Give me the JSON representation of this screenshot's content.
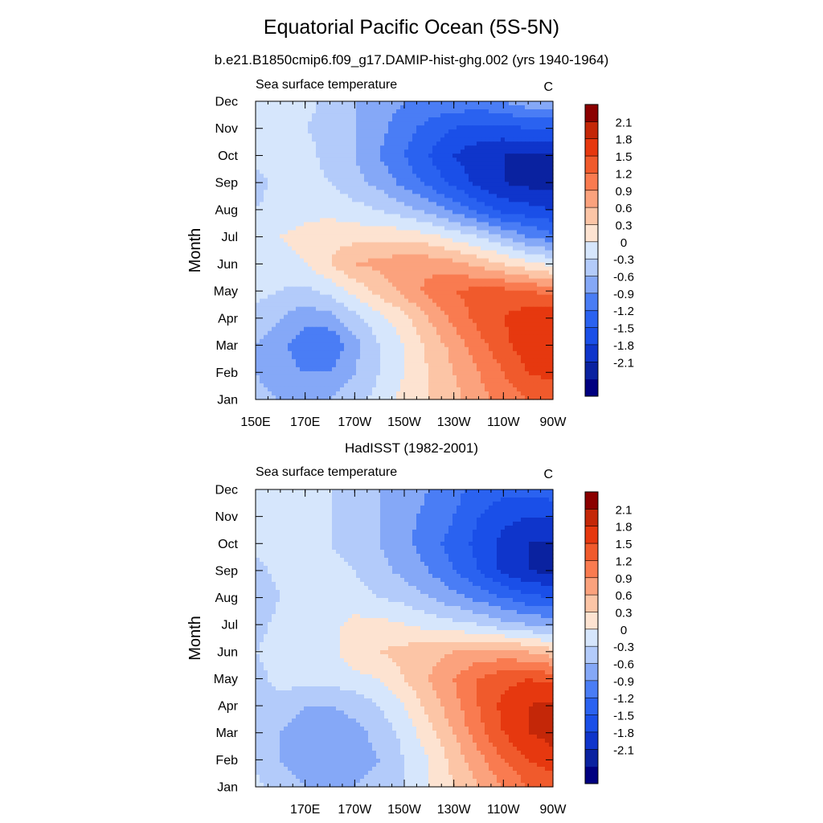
{
  "title": "Equatorial Pacific Ocean (5S-5N)",
  "subtitle": "b.e21.B1850cmip6.f09_g17.DAMIP-hist-ghg.002 (yrs 1940-1964)",
  "colors": {
    "levels": [
      "#000080",
      "#0a22a0",
      "#0f35cb",
      "#1a4fe8",
      "#2a62f0",
      "#4a7df5",
      "#85a8f7",
      "#b3cbfa",
      "#d6e6fc",
      "#fde3d1",
      "#fcc5a6",
      "#fba27d",
      "#f97b50",
      "#f05a2c",
      "#e6380f",
      "#c42708",
      "#8b0000"
    ]
  },
  "chart_data": [
    {
      "type": "heatmap",
      "title": "",
      "left_label": "Sea surface temperature",
      "right_label": "C",
      "ylabel": "Month",
      "xlabel": "",
      "x_ticks": [
        "150E",
        "170E",
        "170W",
        "150W",
        "130W",
        "110W",
        "90W"
      ],
      "y_ticks": [
        "Jan",
        "Feb",
        "Mar",
        "Apr",
        "May",
        "Jun",
        "Jul",
        "Aug",
        "Sep",
        "Oct",
        "Nov",
        "Dec"
      ],
      "xlim": [
        150,
        270
      ],
      "colorbar_levels": [
        -2.1,
        -1.8,
        -1.5,
        -1.2,
        -0.9,
        -0.6,
        -0.3,
        0,
        0.3,
        0.6,
        0.9,
        1.2,
        1.5,
        1.8,
        2.1
      ],
      "colorbar_labels": [
        "2.1",
        "1.8",
        "1.5",
        "1.2",
        "0.9",
        "0.6",
        "0.3",
        "0",
        "-0.3",
        "-0.6",
        "-0.9",
        "-1.2",
        "-1.5",
        "-1.8",
        "-2.1"
      ],
      "lon": [
        150,
        160,
        170,
        180,
        190,
        200,
        210,
        220,
        230,
        240,
        250,
        260,
        270
      ],
      "values": [
        [
          -0.2,
          -0.3,
          -0.4,
          -0.3,
          -0.1,
          0.1,
          0.4,
          0.6,
          0.8,
          1.1,
          1.3,
          1.5,
          1.6
        ],
        [
          -0.3,
          -0.5,
          -0.6,
          -0.6,
          -0.3,
          0.0,
          0.3,
          0.6,
          0.9,
          1.2,
          1.5,
          1.8,
          1.9
        ],
        [
          -0.3,
          -0.5,
          -0.8,
          -0.9,
          -0.4,
          0.0,
          0.3,
          0.7,
          1.0,
          1.4,
          1.7,
          2.0,
          2.1
        ],
        [
          -0.1,
          -0.3,
          -0.5,
          -0.4,
          -0.1,
          0.2,
          0.5,
          0.9,
          1.3,
          1.6,
          1.8,
          2.0,
          2.1
        ],
        [
          0.1,
          0.0,
          -0.1,
          0.1,
          0.4,
          0.7,
          1.0,
          1.3,
          1.5,
          1.6,
          1.6,
          1.5,
          1.4
        ],
        [
          0.1,
          0.2,
          0.3,
          0.6,
          0.9,
          1.0,
          1.1,
          1.1,
          1.0,
          0.8,
          0.6,
          0.4,
          0.2
        ],
        [
          0.1,
          0.3,
          0.4,
          0.5,
          0.5,
          0.5,
          0.5,
          0.4,
          0.2,
          0.0,
          -0.3,
          -0.6,
          -0.8
        ],
        [
          0.0,
          0.1,
          0.2,
          0.2,
          0.1,
          0.0,
          -0.2,
          -0.4,
          -0.7,
          -1.0,
          -1.3,
          -1.4,
          -1.5
        ],
        [
          -0.1,
          0.1,
          0.1,
          0.0,
          -0.2,
          -0.4,
          -0.7,
          -1.0,
          -1.3,
          -1.6,
          -1.8,
          -1.9,
          -1.9
        ],
        [
          0.1,
          0.1,
          0.1,
          -0.1,
          -0.3,
          -0.6,
          -0.9,
          -1.2,
          -1.5,
          -1.7,
          -1.8,
          -1.8,
          -1.8
        ],
        [
          0.1,
          0.1,
          0.0,
          -0.1,
          -0.3,
          -0.5,
          -0.8,
          -1.0,
          -1.2,
          -1.3,
          -1.3,
          -1.2,
          -1.2
        ],
        [
          0.1,
          0.1,
          0.1,
          -0.1,
          -0.3,
          -0.4,
          -0.6,
          -0.7,
          -0.7,
          -0.7,
          -0.6,
          -0.4,
          -0.3
        ]
      ]
    },
    {
      "type": "heatmap",
      "title": "HadISST (1982-2001)",
      "left_label": "Sea surface temperature",
      "right_label": "C",
      "ylabel": "Month",
      "xlabel": "",
      "x_ticks": [
        "170E",
        "170W",
        "150W",
        "130W",
        "110W",
        "90W"
      ],
      "y_ticks": [
        "Jan",
        "Feb",
        "Mar",
        "Apr",
        "May",
        "Jun",
        "Jul",
        "Aug",
        "Sep",
        "Oct",
        "Nov",
        "Dec"
      ],
      "xlim": [
        150,
        270
      ],
      "colorbar_levels": [
        -2.1,
        -1.8,
        -1.5,
        -1.2,
        -0.9,
        -0.6,
        -0.3,
        0,
        0.3,
        0.6,
        0.9,
        1.2,
        1.5,
        1.8,
        2.1
      ],
      "colorbar_labels": [
        "2.1",
        "1.8",
        "1.5",
        "1.2",
        "0.9",
        "0.6",
        "0.3",
        "0",
        "-0.3",
        "-0.6",
        "-0.9",
        "-1.2",
        "-1.5",
        "-1.8",
        "-2.1"
      ],
      "lon": [
        150,
        160,
        170,
        180,
        190,
        200,
        210,
        220,
        230,
        240,
        250,
        260,
        270
      ],
      "values": [
        [
          0.1,
          -0.2,
          -0.3,
          -0.3,
          -0.3,
          -0.2,
          0.0,
          0.3,
          0.6,
          0.9,
          1.2,
          1.5,
          1.6
        ],
        [
          -0.1,
          -0.3,
          -0.4,
          -0.4,
          -0.4,
          -0.3,
          0.0,
          0.3,
          0.7,
          1.1,
          1.5,
          1.8,
          2.0
        ],
        [
          -0.1,
          -0.3,
          -0.5,
          -0.5,
          -0.4,
          -0.2,
          0.1,
          0.5,
          0.9,
          1.4,
          1.8,
          2.1,
          2.2
        ],
        [
          -0.1,
          -0.1,
          -0.3,
          -0.3,
          -0.2,
          0.0,
          0.3,
          0.7,
          1.1,
          1.5,
          1.9,
          2.1,
          2.2
        ],
        [
          -0.1,
          0.1,
          0.1,
          0.1,
          0.2,
          0.3,
          0.6,
          0.9,
          1.2,
          1.5,
          1.7,
          1.8,
          1.7
        ],
        [
          0.0,
          0.1,
          0.1,
          0.2,
          0.5,
          0.6,
          0.7,
          0.8,
          0.9,
          1.0,
          1.0,
          0.9,
          0.7
        ],
        [
          -0.1,
          0.1,
          0.1,
          0.2,
          0.4,
          0.4,
          0.3,
          0.2,
          0.1,
          0.0,
          -0.2,
          -0.3,
          -0.4
        ],
        [
          -0.2,
          0.0,
          0.1,
          0.1,
          0.1,
          0.0,
          -0.1,
          -0.3,
          -0.5,
          -0.7,
          -0.9,
          -1.1,
          -1.2
        ],
        [
          -0.1,
          0.1,
          0.3,
          0.1,
          0.0,
          -0.2,
          -0.4,
          -0.6,
          -0.9,
          -1.2,
          -1.6,
          -1.8,
          -1.9
        ],
        [
          0.1,
          0.1,
          0.1,
          0.0,
          -0.1,
          -0.3,
          -0.5,
          -0.8,
          -1.0,
          -1.3,
          -1.6,
          -1.8,
          -1.8
        ],
        [
          0.1,
          0.1,
          0.1,
          0.0,
          -0.1,
          -0.3,
          -0.5,
          -0.7,
          -0.9,
          -1.2,
          -1.4,
          -1.5,
          -1.5
        ],
        [
          0.1,
          0.1,
          0.1,
          0.0,
          -0.1,
          -0.3,
          -0.4,
          -0.6,
          -0.8,
          -1.0,
          -1.1,
          -1.1,
          -1.0
        ]
      ]
    }
  ]
}
